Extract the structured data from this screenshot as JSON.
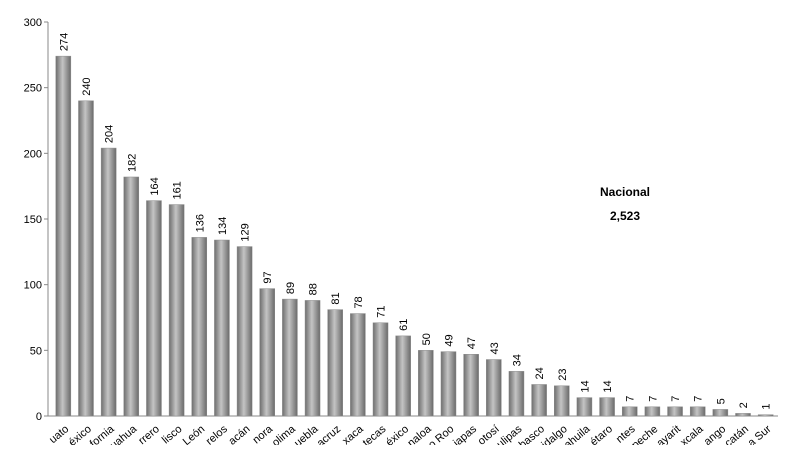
{
  "chart_data": {
    "type": "bar",
    "categories": [
      "uato",
      "éxico",
      "fornia",
      "uahua",
      "rrero",
      "lisco",
      "León",
      "relos",
      "acán",
      "nora",
      "olima",
      "uebla",
      "acruz",
      "xaca",
      "tecas",
      "éxico",
      "naloa",
      "o Roo",
      "iapas",
      "otosí",
      "ulipas",
      "basco",
      "idalgo",
      "ahuila",
      "étaro",
      "ntes",
      "peche",
      "ayarit",
      "xcala",
      "ango",
      "catán",
      "a Sur"
    ],
    "values": [
      274,
      240,
      204,
      182,
      164,
      161,
      136,
      134,
      129,
      97,
      89,
      88,
      81,
      78,
      71,
      61,
      50,
      49,
      47,
      43,
      34,
      24,
      23,
      14,
      14,
      7,
      7,
      7,
      7,
      5,
      2,
      1
    ],
    "color": "#8c8c8c",
    "ylim": [
      0,
      300
    ],
    "yticks": [
      0,
      50,
      100,
      150,
      200,
      250,
      300
    ],
    "grid": false,
    "annotation": {
      "label": "Nacional",
      "value": "2,523"
    }
  }
}
